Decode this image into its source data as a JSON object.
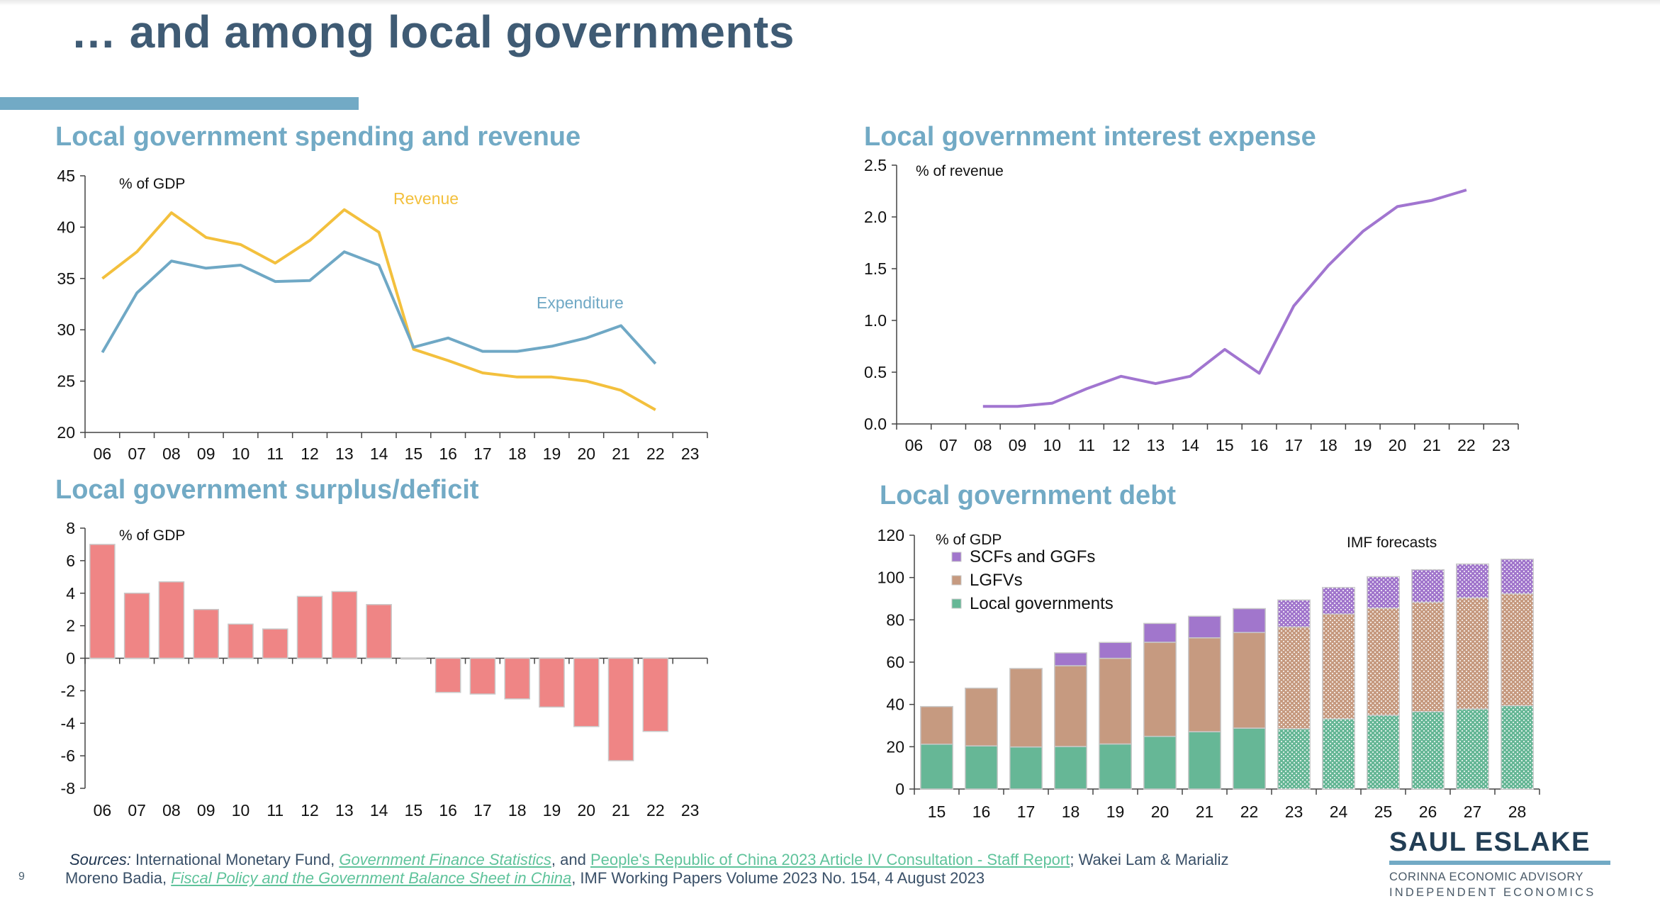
{
  "page": {
    "title": "… and among local governments",
    "page_number": "9",
    "colors": {
      "title": "#3f5b74",
      "accent": "#72aac5",
      "revenue": "#f3c03d",
      "expenditure": "#6fa8c5",
      "interest": "#a175d0",
      "surplus_bar": "#ef8585",
      "local_governments": "#66b796",
      "lgfvs": "#c69a80",
      "scfs_ggfs": "#a176cc",
      "link": "#5fc39b"
    }
  },
  "footer": {
    "sources_label": "Sources:",
    "line1_a": " International Monetary Fund, ",
    "link1": "Government Finance Statistics",
    "line1_b": ", and ",
    "link2": "People's Republic of China 2023 Article IV Consultation - Staff Report",
    "line1_c": ";  Wakei Lam & Marializ",
    "line2_a": "Moreno Badia, ",
    "link3": "Fiscal Policy and the Government Balance Sheet in China",
    "line2_b": ", IMF Working Papers Volume 2023 No. 154, 4 August 2023"
  },
  "logo": {
    "name": "SAUL ESLAKE",
    "line1": "CORINNA ECONOMIC ADVISORY",
    "line2": "INDEPENDENT ECONOMICS"
  },
  "chart_data": [
    {
      "id": "spending_revenue",
      "type": "line",
      "title": "Local government spending and revenue",
      "ylabel": "% of GDP",
      "xlabel": "",
      "categories": [
        "06",
        "07",
        "08",
        "09",
        "10",
        "11",
        "12",
        "13",
        "14",
        "15",
        "16",
        "17",
        "18",
        "19",
        "20",
        "21",
        "22",
        "23"
      ],
      "ylim": [
        20,
        45
      ],
      "yticks": [
        20,
        25,
        30,
        35,
        40,
        45
      ],
      "grid": false,
      "legend": "inline labels",
      "series": [
        {
          "name": "Revenue",
          "color": "#f3c03d",
          "values": [
            35.0,
            37.6,
            41.4,
            39.0,
            38.3,
            36.5,
            38.7,
            41.7,
            39.5,
            28.1,
            27.0,
            25.8,
            25.4,
            25.4,
            25.0,
            24.1,
            22.2,
            null
          ]
        },
        {
          "name": "Expenditure",
          "color": "#6fa8c5",
          "values": [
            27.8,
            33.6,
            36.7,
            36.0,
            36.3,
            34.7,
            34.8,
            37.6,
            36.3,
            28.3,
            29.2,
            27.9,
            27.9,
            28.4,
            29.2,
            30.4,
            26.7,
            null
          ]
        }
      ]
    },
    {
      "id": "interest_expense",
      "type": "line",
      "title": "Local government interest expense",
      "ylabel": "% of revenue",
      "xlabel": "",
      "categories": [
        "06",
        "07",
        "08",
        "09",
        "10",
        "11",
        "12",
        "13",
        "14",
        "15",
        "16",
        "17",
        "18",
        "19",
        "20",
        "21",
        "22",
        "23"
      ],
      "ylim": [
        0,
        2.5
      ],
      "yticks": [
        "0.0",
        "0.5",
        "1.0",
        "1.5",
        "2.0",
        "2.5"
      ],
      "grid": false,
      "series": [
        {
          "name": "Interest expense",
          "color": "#a175d0",
          "values": [
            null,
            null,
            0.17,
            0.17,
            0.2,
            0.34,
            0.46,
            0.39,
            0.46,
            0.72,
            0.49,
            1.14,
            1.53,
            1.86,
            2.1,
            2.16,
            2.26,
            null
          ]
        }
      ]
    },
    {
      "id": "surplus_deficit",
      "type": "bar",
      "title": "Local government surplus/deficit",
      "ylabel": "% of GDP",
      "xlabel": "",
      "categories": [
        "06",
        "07",
        "08",
        "09",
        "10",
        "11",
        "12",
        "13",
        "14",
        "15",
        "16",
        "17",
        "18",
        "19",
        "20",
        "21",
        "22",
        "23"
      ],
      "values": [
        7.0,
        4.0,
        4.7,
        3.0,
        2.1,
        1.8,
        3.8,
        4.1,
        3.3,
        -0.05,
        -2.1,
        -2.2,
        -2.5,
        -3.0,
        -4.2,
        -6.3,
        -4.5,
        null
      ],
      "ylim": [
        -8,
        8
      ],
      "yticks": [
        -8,
        -6,
        -4,
        -2,
        0,
        2,
        4,
        6,
        8
      ],
      "grid": false,
      "color": "#ef8585"
    },
    {
      "id": "debt",
      "type": "bar",
      "stacked": true,
      "title": "Local government debt",
      "ylabel": "% of GDP",
      "xlabel": "",
      "annotation": "IMF forecasts",
      "forecast_from": "23",
      "categories": [
        "15",
        "16",
        "17",
        "18",
        "19",
        "20",
        "21",
        "22",
        "23",
        "24",
        "25",
        "26",
        "27",
        "28"
      ],
      "ylim": [
        0,
        120
      ],
      "yticks": [
        0,
        20,
        40,
        60,
        80,
        100,
        120
      ],
      "grid": false,
      "legend": "top-left",
      "series": [
        {
          "name": "Local governments",
          "color": "#66b796",
          "values": [
            21.2,
            20.4,
            19.9,
            20.1,
            21.3,
            24.9,
            27.1,
            28.8,
            28.5,
            33.2,
            34.9,
            36.6,
            37.9,
            39.4
          ]
        },
        {
          "name": "LGFVs",
          "color": "#c69a80",
          "values": [
            17.8,
            27.3,
            37.1,
            38.2,
            40.5,
            44.5,
            44.4,
            45.2,
            48.1,
            49.5,
            50.6,
            51.7,
            52.5,
            52.9
          ]
        },
        {
          "name": "SCFs and GGFs",
          "color": "#a176cc",
          "values": [
            0,
            0,
            0,
            6.1,
            7.5,
            8.9,
            10.2,
            11.3,
            12.8,
            12.6,
            14.9,
            15.4,
            16.0,
            16.4
          ]
        }
      ],
      "legend_order": [
        "SCFs and GGFs",
        "LGFVs",
        "Local governments"
      ]
    }
  ]
}
